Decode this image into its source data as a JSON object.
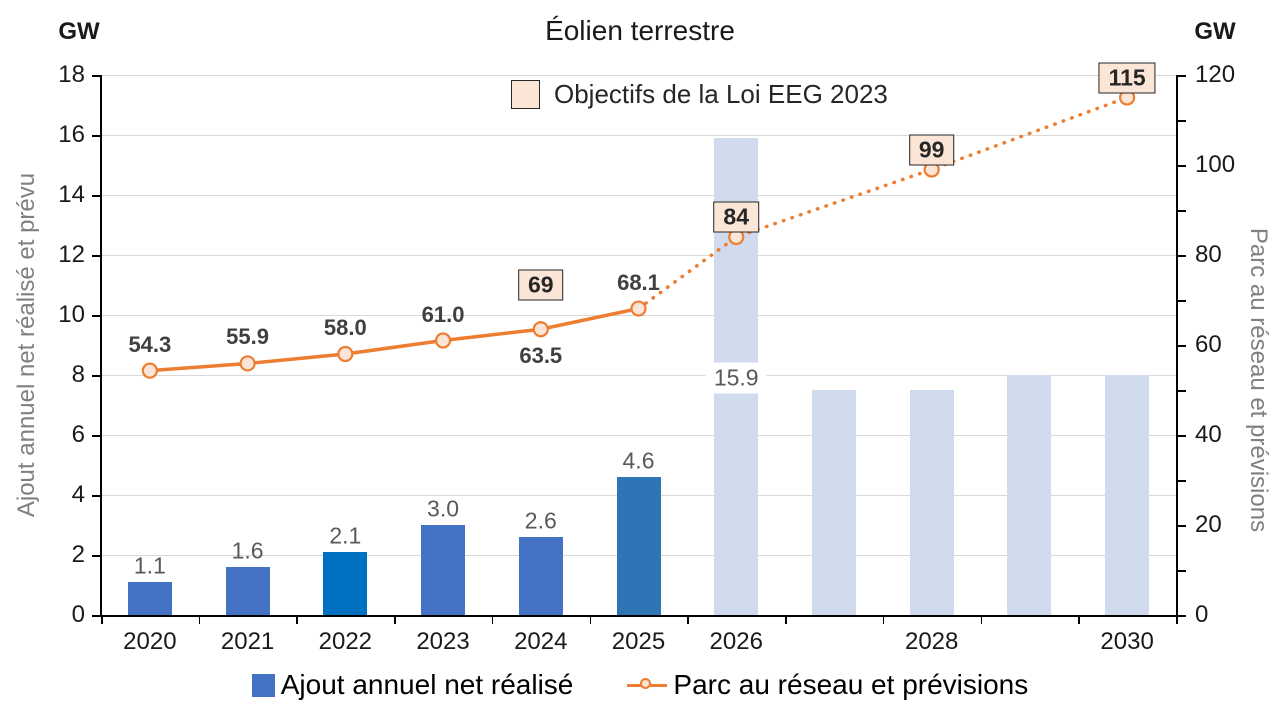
{
  "title": "Éolien terrestre",
  "left_axis": {
    "unit": "GW",
    "title": "Ajout annuel net réalisé et prévu",
    "min": 0,
    "max": 18,
    "tick_step": 2
  },
  "right_axis": {
    "unit": "GW",
    "title": "Parc au réseau et prévisions",
    "min": 0,
    "max": 120,
    "label_step": 20,
    "tick_step": 10
  },
  "target_legend": {
    "label": "Objectifs de la Loi EEG 2023",
    "fill": "#FBE5D6",
    "border": "#262626"
  },
  "bottom_legend": [
    {
      "label": "Ajout annuel net réalisé",
      "swatch": "square",
      "color": "#4472C4"
    },
    {
      "label": "Parc au réseau et prévisions",
      "swatch": "line-marker",
      "color": "#ED7D31",
      "marker_fill": "#FBE5D6"
    }
  ],
  "colors": {
    "grid": "#D9D9D9",
    "axis": "#000000",
    "realized_bar": "#4472C4",
    "realized_bar_2022": "#0070C0",
    "realized_bar_2025": "#2E75B6",
    "forecast_bar": "#D0DCEE",
    "line": "#ED7D31",
    "marker_fill": "#FBE5D6"
  },
  "chart_data": {
    "type": "bar+line combo, dual axis",
    "categories": [
      "2020",
      "2021",
      "2022",
      "2023",
      "2024",
      "2025",
      "2026",
      "2027",
      "2028",
      "2029",
      "2030"
    ],
    "x_tick_labels": [
      "2020",
      "2021",
      "2022",
      "2023",
      "2024",
      "2025",
      "2026",
      "",
      "2028",
      "",
      "2030"
    ],
    "bars": {
      "axis": "left",
      "points": [
        {
          "category": "2020",
          "value": 1.1,
          "label": "1.1",
          "color": "#4472C4",
          "kind": "realized"
        },
        {
          "category": "2021",
          "value": 1.6,
          "label": "1.6",
          "color": "#4472C4",
          "kind": "realized"
        },
        {
          "category": "2022",
          "value": 2.1,
          "label": "2.1",
          "color": "#0070C0",
          "kind": "realized"
        },
        {
          "category": "2023",
          "value": 3.0,
          "label": "3.0",
          "color": "#4472C4",
          "kind": "realized"
        },
        {
          "category": "2024",
          "value": 2.6,
          "label": "2.6",
          "color": "#4472C4",
          "kind": "realized"
        },
        {
          "category": "2025",
          "value": 4.6,
          "label": "4.6",
          "color": "#2E75B6",
          "kind": "realized"
        },
        {
          "category": "2026",
          "value": 15.9,
          "label": "15.9",
          "color": "#D0DCEE",
          "kind": "forecast",
          "label_placement": "inside"
        },
        {
          "category": "2027",
          "value": 7.5,
          "label": "",
          "color": "#D0DCEE",
          "kind": "forecast"
        },
        {
          "category": "2028",
          "value": 7.5,
          "label": "",
          "color": "#D0DCEE",
          "kind": "forecast"
        },
        {
          "category": "2029",
          "value": 8.0,
          "label": "",
          "color": "#D0DCEE",
          "kind": "forecast"
        },
        {
          "category": "2030",
          "value": 8.0,
          "label": "",
          "color": "#D0DCEE",
          "kind": "forecast"
        }
      ]
    },
    "line": {
      "name": "Parc au réseau et prévisions",
      "axis": "right",
      "color": "#ED7D31",
      "marker_fill": "#FBE5D6",
      "points": [
        {
          "category": "2020",
          "value": 54.3,
          "label": "54.3",
          "label_placement": "above",
          "segment": "solid"
        },
        {
          "category": "2021",
          "value": 55.9,
          "label": "55.9",
          "label_placement": "above",
          "segment": "solid"
        },
        {
          "category": "2022",
          "value": 58.0,
          "label": "58.0",
          "label_placement": "above",
          "segment": "solid"
        },
        {
          "category": "2023",
          "value": 61.0,
          "label": "61.0",
          "label_placement": "above",
          "segment": "solid"
        },
        {
          "category": "2024",
          "value": 63.5,
          "label": "63.5",
          "label_placement": "below",
          "segment": "solid"
        },
        {
          "category": "2025",
          "value": 68.1,
          "label": "68.1",
          "label_placement": "above",
          "segment": "solid"
        },
        {
          "category": "2026",
          "value": 84,
          "label": "",
          "segment": "dotted"
        },
        {
          "category": "2028",
          "value": 99,
          "label": "",
          "segment": "dotted"
        },
        {
          "category": "2030",
          "value": 115,
          "label": "",
          "segment": "dotted"
        }
      ]
    },
    "targets": {
      "name": "Objectifs de la Loi EEG 2023",
      "axis": "right",
      "boxes": [
        {
          "category": "2024",
          "value": 69,
          "label": "69"
        },
        {
          "category": "2026",
          "value": 84,
          "label": "84"
        },
        {
          "category": "2028",
          "value": 99,
          "label": "99"
        },
        {
          "category": "2030",
          "value": 115,
          "label": "115"
        }
      ]
    }
  }
}
